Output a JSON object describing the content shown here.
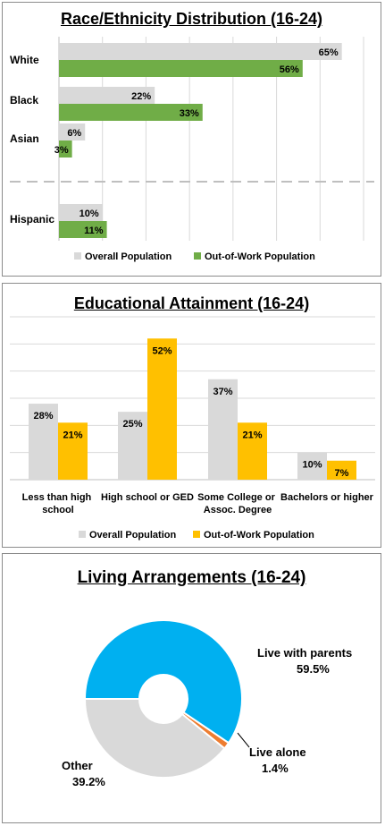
{
  "chart_data": [
    {
      "type": "bar",
      "orientation": "horizontal",
      "title": "Race/Ethnicity Distribution (16-24)",
      "categories": [
        "White",
        "Black",
        "Asian",
        "Hispanic"
      ],
      "series": [
        {
          "name": "Overall Population",
          "values": [
            65,
            22,
            6,
            10
          ],
          "labels": [
            "65%",
            "22%",
            "6%",
            "10%"
          ],
          "color": "#d9d9d9"
        },
        {
          "name": "Out-of-Work Population",
          "values": [
            56,
            33,
            3,
            11
          ],
          "labels": [
            "56%",
            "33%",
            "3%",
            "11%"
          ],
          "color": "#70ad47"
        }
      ],
      "xlim": [
        0,
        70
      ],
      "grid": true,
      "legend": "bottom"
    },
    {
      "type": "bar",
      "orientation": "vertical",
      "title": "Educational Attainment (16-24)",
      "categories": [
        "Less than high school",
        "High school or GED",
        "Some College or Assoc. Degree",
        "Bachelors or higher"
      ],
      "series": [
        {
          "name": "Overall Population",
          "values": [
            28,
            25,
            37,
            10
          ],
          "labels": [
            "28%",
            "25%",
            "37%",
            "10%"
          ],
          "color": "#d9d9d9"
        },
        {
          "name": "Out-of-Work Population",
          "values": [
            21,
            52,
            21,
            7
          ],
          "labels": [
            "21%",
            "52%",
            "21%",
            "7%"
          ],
          "color": "#ffc000"
        }
      ],
      "ylim": [
        0,
        60
      ],
      "grid": true,
      "legend": "bottom"
    },
    {
      "type": "pie",
      "donut": true,
      "title": "Living Arrangements (16-24)",
      "slices": [
        {
          "label": "Live with parents",
          "value": 59.5,
          "value_label": "59.5%",
          "color": "#00b0f0"
        },
        {
          "label": "Live alone",
          "value": 1.4,
          "value_label": "1.4%",
          "color": "#ed7d31"
        },
        {
          "label": "Other",
          "value": 39.2,
          "value_label": "39.2%",
          "color": "#d9d9d9"
        }
      ]
    }
  ]
}
